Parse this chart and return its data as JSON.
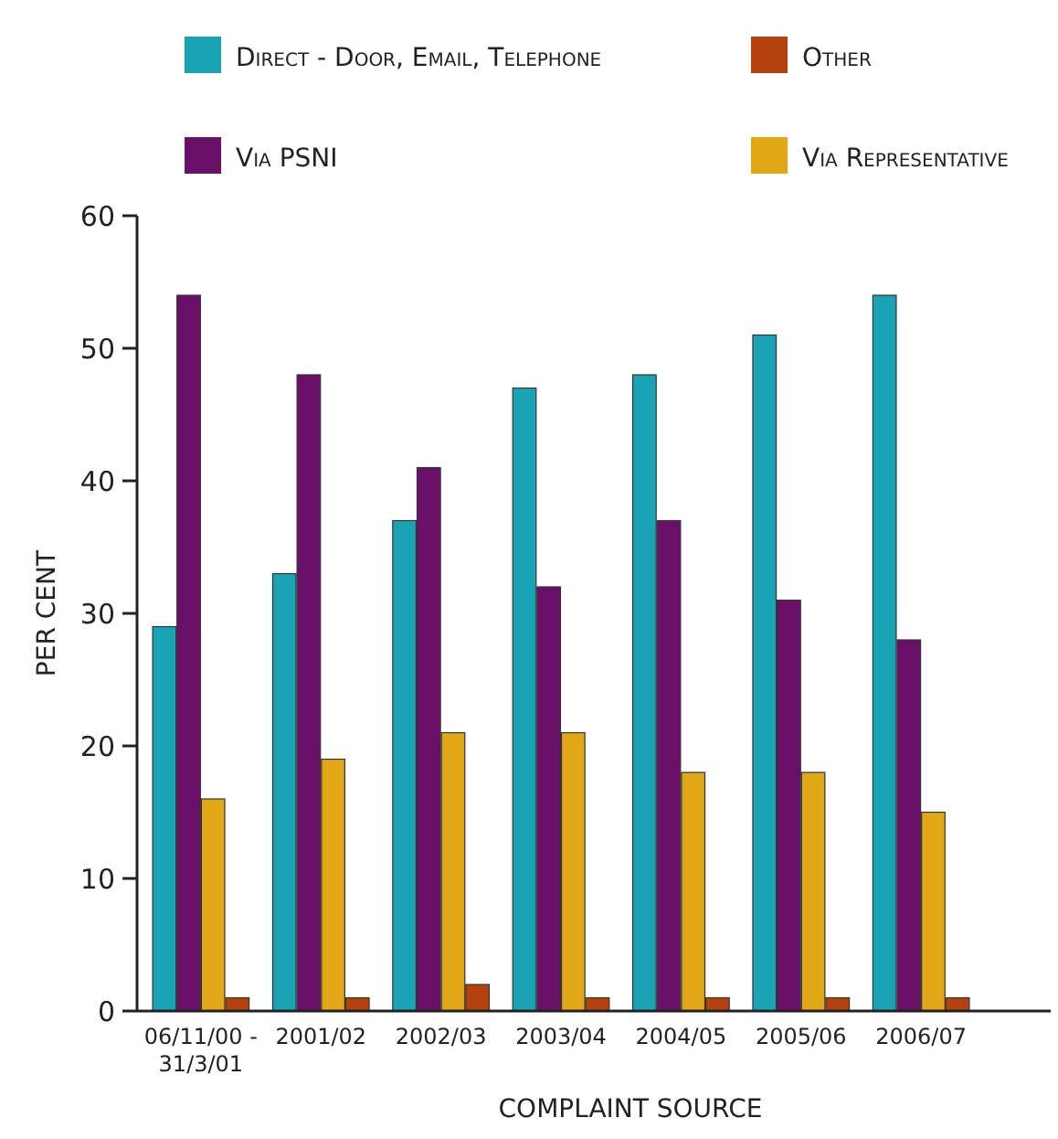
{
  "chart_data": {
    "type": "bar",
    "xlabel": "COMPLAINT SOURCE",
    "ylabel": "PER CENT",
    "categories": [
      "06/11/00 -\n31/3/01",
      "2001/02",
      "2002/03",
      "2003/04",
      "2004/05",
      "2005/06",
      "2006/07"
    ],
    "series": [
      {
        "name": "Direct - Door, Email, Telephone",
        "color": "#1aa3b5",
        "values": [
          29,
          33,
          37,
          47,
          48,
          51,
          54
        ]
      },
      {
        "name": "Via PSNI",
        "color": "#6b1068",
        "values": [
          54,
          48,
          41,
          32,
          37,
          31,
          28
        ]
      },
      {
        "name": "Via Representative",
        "color": "#e0a817",
        "values": [
          16,
          19,
          21,
          21,
          18,
          18,
          15
        ]
      },
      {
        "name": "Other",
        "color": "#b3420f",
        "values": [
          1,
          1,
          2,
          1,
          1,
          1,
          1
        ]
      }
    ],
    "ylim": [
      0,
      60
    ],
    "yticks": [
      0,
      10,
      20,
      30,
      40,
      50,
      60
    ],
    "grid": false,
    "legend": "top"
  }
}
